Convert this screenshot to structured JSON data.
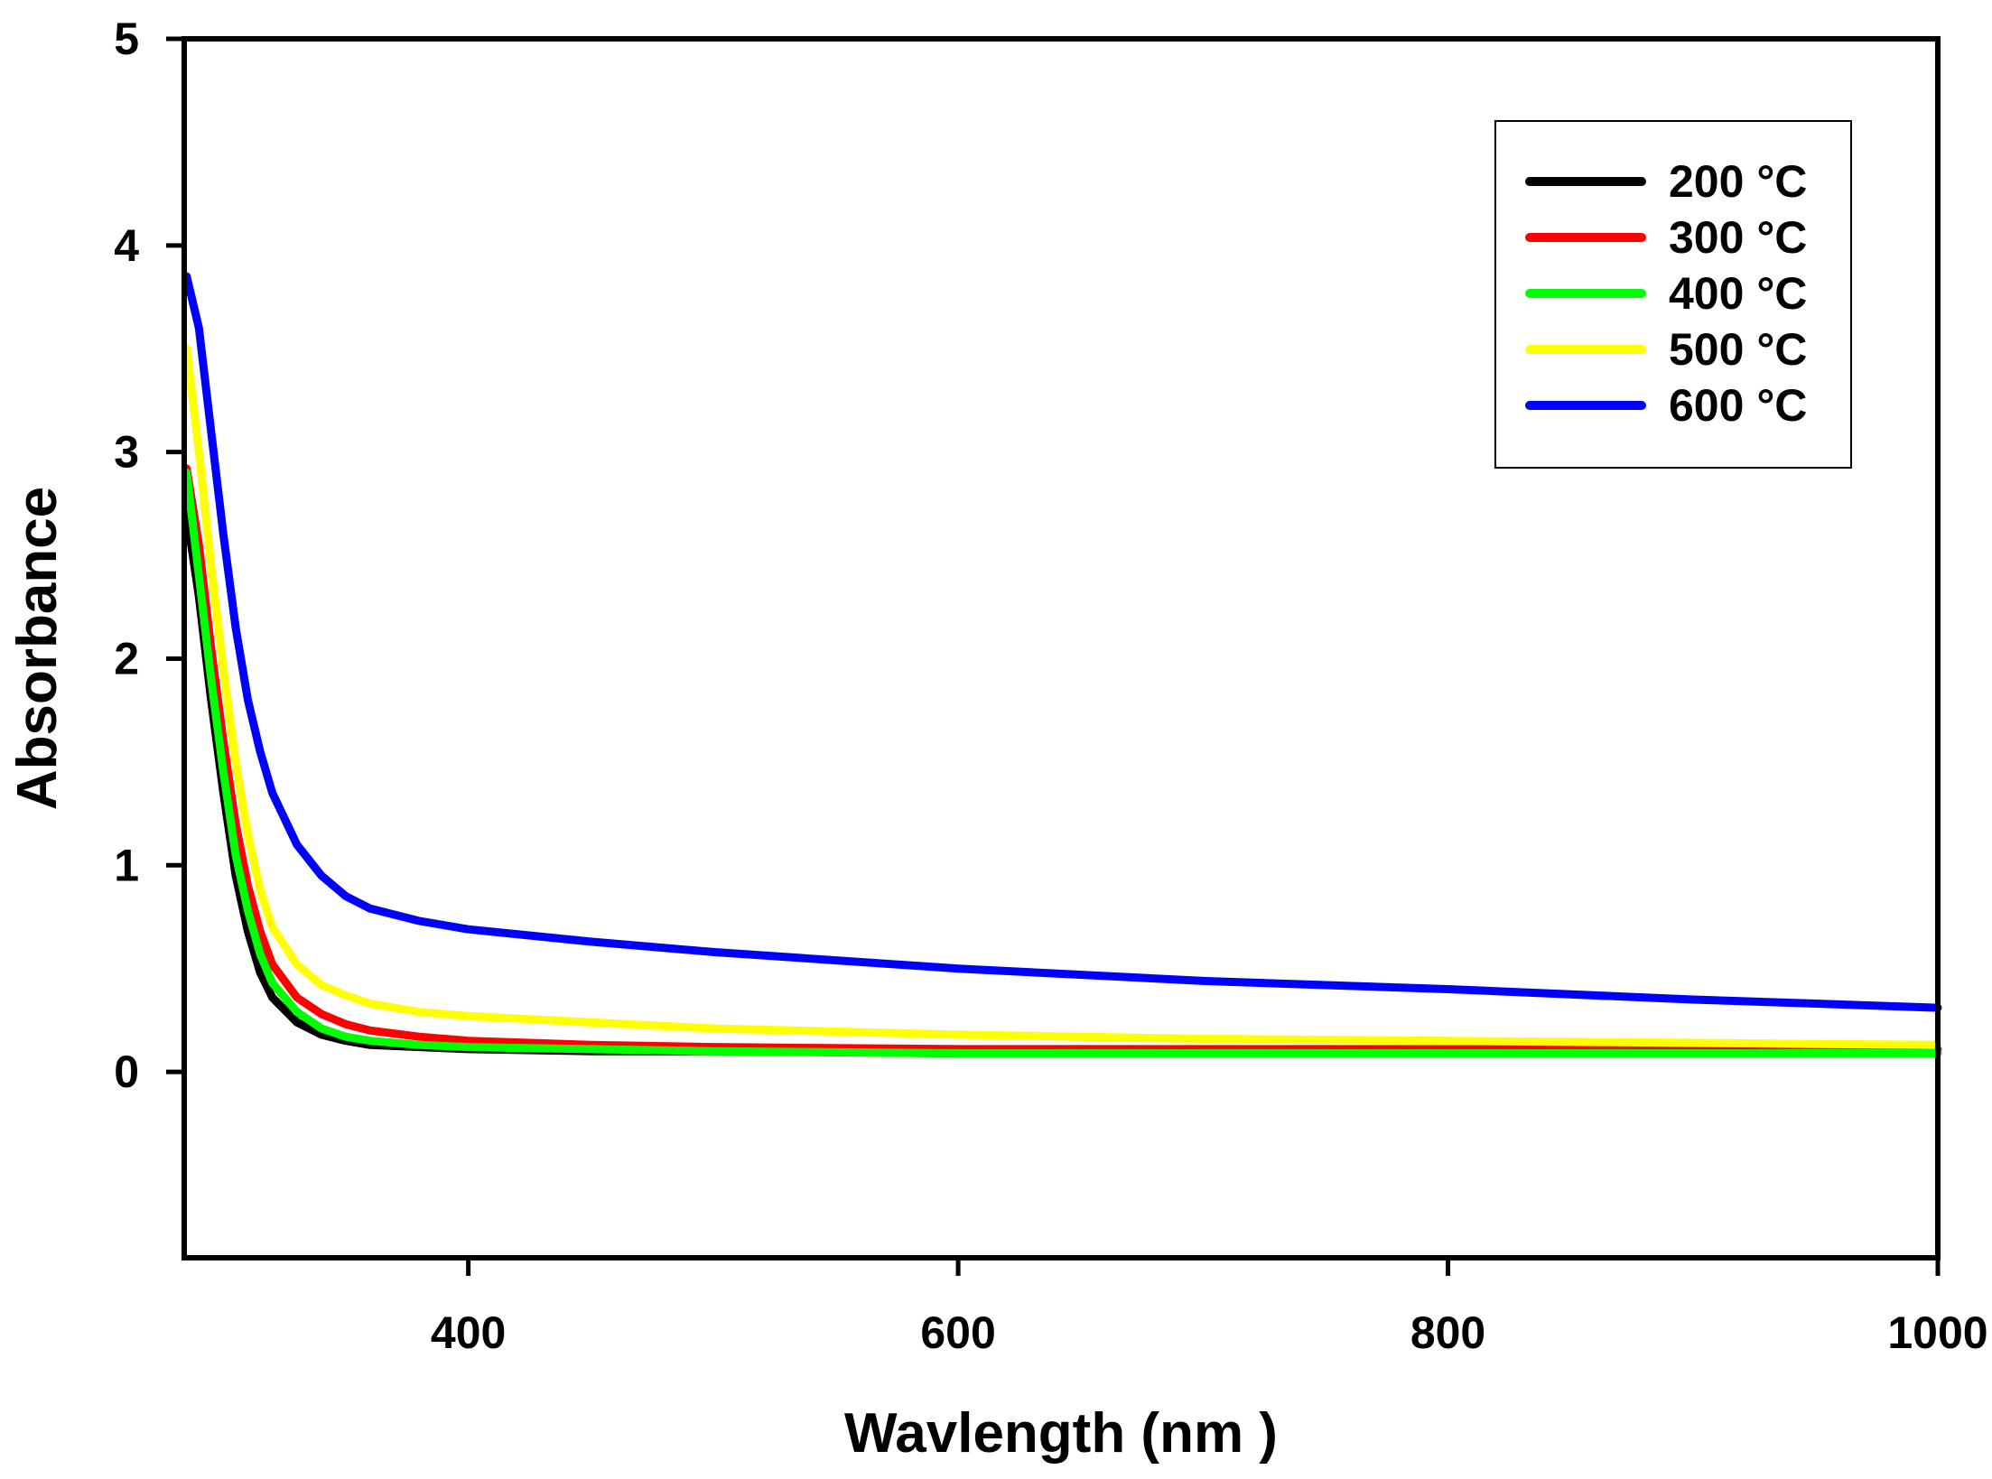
{
  "chart_data": {
    "type": "line",
    "title": "",
    "xlabel": "Wavlength (nm )",
    "ylabel": "Absorbance",
    "xlim": [
      284,
      1000
    ],
    "ylim": [
      -0.9,
      5
    ],
    "xticks": [
      400,
      600,
      800,
      1000
    ],
    "yticks": [
      0,
      1,
      2,
      3,
      4,
      5
    ],
    "grid": false,
    "legend_position": "top-right",
    "series": [
      {
        "name": "200 °C",
        "color": "#000000",
        "x": [
          285,
          290,
          295,
          300,
          305,
          310,
          315,
          320,
          330,
          340,
          350,
          360,
          380,
          400,
          450,
          500,
          600,
          700,
          800,
          900,
          1000
        ],
        "y": [
          2.7,
          2.3,
          1.8,
          1.35,
          0.95,
          0.68,
          0.48,
          0.36,
          0.24,
          0.18,
          0.15,
          0.13,
          0.12,
          0.11,
          0.1,
          0.1,
          0.09,
          0.09,
          0.09,
          0.09,
          0.09
        ]
      },
      {
        "name": "300 °C",
        "color": "#ff0000",
        "x": [
          285,
          290,
          295,
          300,
          305,
          310,
          315,
          320,
          330,
          340,
          350,
          360,
          380,
          400,
          450,
          500,
          600,
          700,
          800,
          900,
          1000
        ],
        "y": [
          2.92,
          2.55,
          2.05,
          1.6,
          1.2,
          0.9,
          0.68,
          0.52,
          0.36,
          0.28,
          0.23,
          0.2,
          0.17,
          0.15,
          0.13,
          0.12,
          0.11,
          0.11,
          0.11,
          0.11,
          0.11
        ]
      },
      {
        "name": "400 °C",
        "color": "#00ff00",
        "x": [
          285,
          290,
          295,
          300,
          305,
          310,
          315,
          320,
          330,
          340,
          350,
          360,
          380,
          400,
          450,
          500,
          600,
          700,
          800,
          900,
          1000
        ],
        "y": [
          2.9,
          2.4,
          1.9,
          1.45,
          1.05,
          0.78,
          0.57,
          0.43,
          0.29,
          0.21,
          0.17,
          0.15,
          0.13,
          0.12,
          0.11,
          0.1,
          0.09,
          0.09,
          0.09,
          0.09,
          0.09
        ]
      },
      {
        "name": "500 °C",
        "color": "#ffff00",
        "x": [
          285,
          290,
          295,
          300,
          305,
          310,
          315,
          320,
          330,
          340,
          350,
          360,
          380,
          400,
          450,
          500,
          600,
          700,
          800,
          900,
          1000
        ],
        "y": [
          3.5,
          3.0,
          2.45,
          1.95,
          1.5,
          1.15,
          0.88,
          0.7,
          0.52,
          0.42,
          0.37,
          0.33,
          0.29,
          0.27,
          0.24,
          0.21,
          0.18,
          0.16,
          0.15,
          0.14,
          0.13
        ]
      },
      {
        "name": "600 °C",
        "color": "#0000ff",
        "x": [
          285,
          290,
          295,
          300,
          305,
          310,
          315,
          320,
          330,
          340,
          350,
          360,
          380,
          400,
          450,
          500,
          600,
          700,
          800,
          900,
          1000
        ],
        "y": [
          3.85,
          3.6,
          3.1,
          2.6,
          2.15,
          1.8,
          1.55,
          1.35,
          1.1,
          0.95,
          0.85,
          0.79,
          0.73,
          0.69,
          0.63,
          0.58,
          0.5,
          0.44,
          0.4,
          0.35,
          0.31
        ]
      }
    ]
  }
}
